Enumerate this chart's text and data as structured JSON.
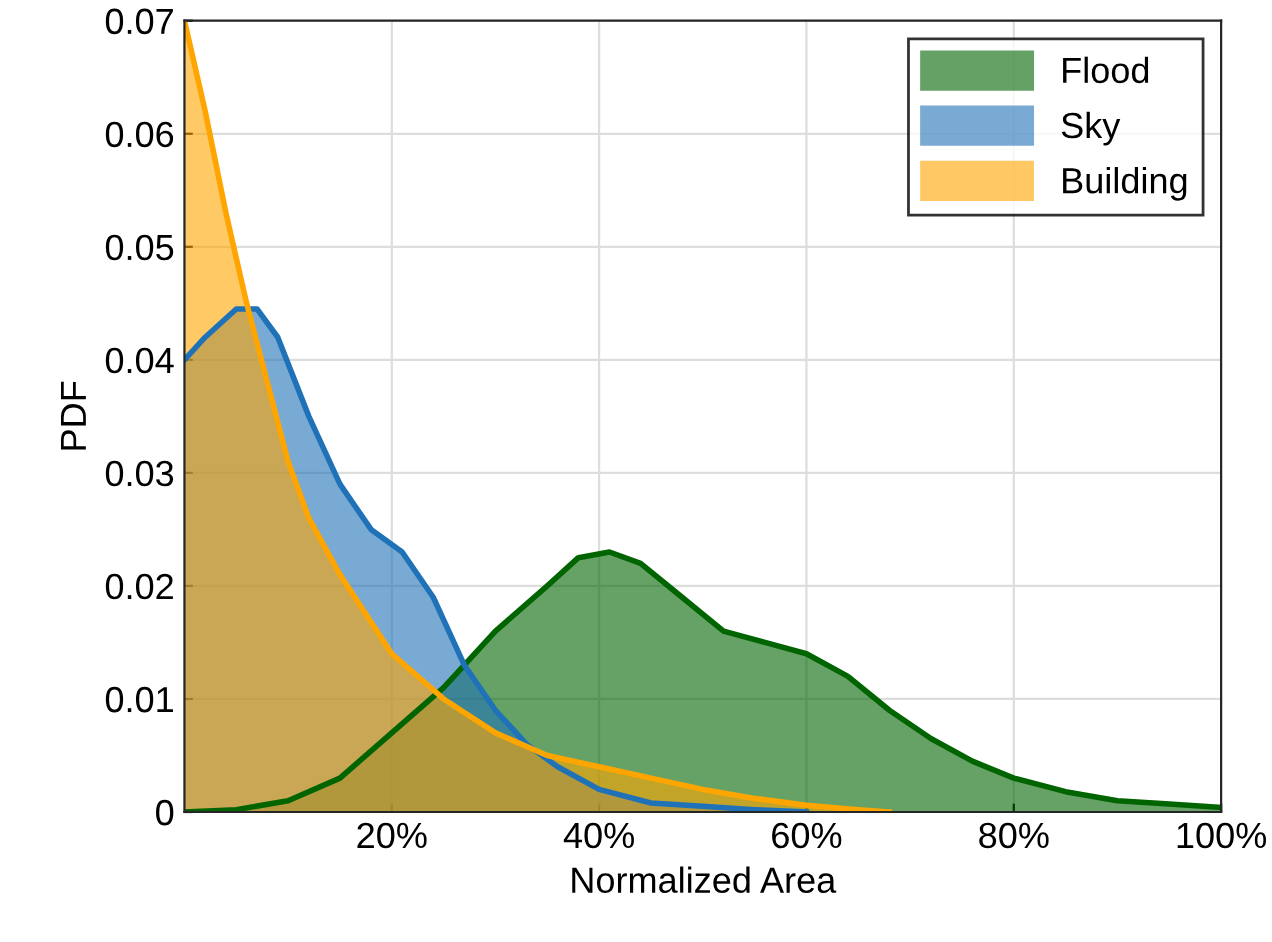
{
  "chart_data": {
    "type": "area",
    "xlabel": "Normalized Area",
    "ylabel": "PDF",
    "xlim": [
      0,
      100
    ],
    "ylim": [
      0,
      0.07
    ],
    "xticks": [
      {
        "value": 20,
        "label": "20%"
      },
      {
        "value": 40,
        "label": "40%"
      },
      {
        "value": 60,
        "label": "60%"
      },
      {
        "value": 80,
        "label": "80%"
      },
      {
        "value": 100,
        "label": "100%"
      }
    ],
    "yticks": [
      0,
      0.01,
      0.02,
      0.03,
      0.04,
      0.05,
      0.06,
      0.07
    ],
    "grid": true,
    "legend": "top right",
    "series": [
      {
        "name": "Flood",
        "color": "#006400",
        "x": [
          0,
          5,
          10,
          15,
          20,
          25,
          30,
          35,
          38,
          41,
          44,
          48,
          52,
          56,
          60,
          64,
          68,
          72,
          76,
          80,
          85,
          90,
          95,
          100
        ],
        "values": [
          0,
          0.0002,
          0.001,
          0.003,
          0.007,
          0.011,
          0.016,
          0.02,
          0.0225,
          0.023,
          0.022,
          0.019,
          0.016,
          0.015,
          0.014,
          0.012,
          0.009,
          0.0065,
          0.0045,
          0.003,
          0.0018,
          0.001,
          0.0007,
          0.0004
        ]
      },
      {
        "name": "Sky",
        "color": "#1f72b8",
        "x": [
          0,
          2,
          5,
          7,
          9,
          12,
          15,
          18,
          21,
          24,
          27,
          30,
          33,
          36,
          40,
          45,
          50,
          55,
          60
        ],
        "values": [
          0.04,
          0.042,
          0.0445,
          0.0445,
          0.042,
          0.035,
          0.029,
          0.025,
          0.023,
          0.019,
          0.013,
          0.009,
          0.006,
          0.004,
          0.002,
          0.0008,
          0.0005,
          0.0002,
          0
        ]
      },
      {
        "name": "Building",
        "color": "#ffa500",
        "x": [
          0,
          2,
          4,
          6,
          8,
          10,
          12,
          15,
          20,
          25,
          30,
          35,
          40,
          45,
          50,
          55,
          60,
          65,
          68
        ],
        "values": [
          0.07,
          0.062,
          0.053,
          0.045,
          0.038,
          0.031,
          0.026,
          0.021,
          0.014,
          0.01,
          0.007,
          0.005,
          0.004,
          0.003,
          0.002,
          0.0012,
          0.0006,
          0.0002,
          0
        ]
      }
    ]
  }
}
